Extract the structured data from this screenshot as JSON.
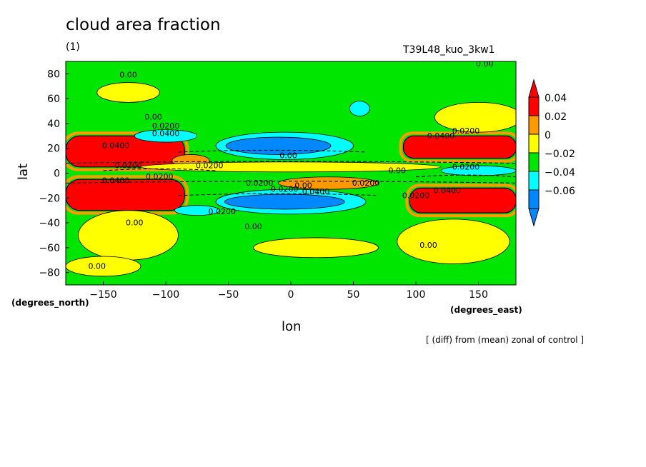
{
  "chart_data": {
    "type": "heatmap",
    "title": "cloud area fraction",
    "panel_label": "(1)",
    "run_label": "T39L48_kuo_3kw1",
    "xlabel": "lon",
    "ylabel": "lat",
    "x_unit": "(degrees_east)",
    "y_unit": "(degrees_north)",
    "footnote": "[ (diff) from (mean) zonal of control ]",
    "xlim": [
      -180,
      180
    ],
    "ylim": [
      -90,
      90
    ],
    "x_ticks": [
      -150,
      -100,
      -50,
      0,
      50,
      100,
      150
    ],
    "y_ticks": [
      -80,
      -60,
      -40,
      -20,
      0,
      20,
      40,
      60,
      80
    ],
    "x_tick_labels": [
      "−150",
      "−100",
      "−50",
      "0",
      "50",
      "100",
      "150"
    ],
    "y_tick_labels": [
      "−80",
      "−60",
      "−40",
      "−20",
      "0",
      "20",
      "40",
      "60",
      "80"
    ],
    "colorbar": {
      "levels": [
        {
          "label": "0.04",
          "color": "#ff0000"
        },
        {
          "label": "0.02",
          "color": "#ff9900"
        },
        {
          "label": "0",
          "color": "#ffff00"
        },
        {
          "label": "−0.02",
          "color": "#00e600"
        },
        {
          "label": "−0.04",
          "color": "#00ffff"
        },
        {
          "label": "−0.06",
          "color": "#0088ff"
        }
      ],
      "top_color": "#ff0000",
      "bottom_color": "#0088ff",
      "extra_color": "#3333ff"
    },
    "background_color": "#00e600",
    "regions": [
      {
        "kind": "band",
        "lon": [
          -180,
          -85
        ],
        "lat": [
          5,
          30
        ],
        "value": 0.04
      },
      {
        "kind": "band",
        "lon": [
          -180,
          -85
        ],
        "lat": [
          -30,
          -5
        ],
        "value": 0.04
      },
      {
        "kind": "band",
        "lon": [
          90,
          180
        ],
        "lat": [
          12,
          30
        ],
        "value": 0.04
      },
      {
        "kind": "band",
        "lon": [
          95,
          180
        ],
        "lat": [
          -32,
          -12
        ],
        "value": 0.04
      },
      {
        "kind": "blob",
        "lon": -5,
        "lat": 22,
        "rlon": 55,
        "rlat": 11,
        "value": -0.04
      },
      {
        "kind": "blob",
        "lon": -10,
        "lat": 22,
        "rlon": 42,
        "rlat": 7,
        "value": -0.06
      },
      {
        "kind": "blob",
        "lon": 0,
        "lat": -23,
        "rlon": 60,
        "rlat": 10,
        "value": -0.04
      },
      {
        "kind": "blob",
        "lon": -5,
        "lat": -23,
        "rlon": 48,
        "rlat": 6,
        "value": -0.06
      },
      {
        "kind": "blob",
        "lon": -100,
        "lat": 30,
        "rlon": 25,
        "rlat": 5,
        "value": -0.04
      },
      {
        "kind": "blob",
        "lon": -75,
        "lat": -30,
        "rlon": 18,
        "rlat": 4,
        "value": -0.04
      },
      {
        "kind": "blob",
        "lon": 55,
        "lat": 52,
        "rlon": 8,
        "rlat": 6,
        "value": -0.04
      },
      {
        "kind": "blob",
        "lon": 150,
        "lat": 2,
        "rlon": 30,
        "rlat": 4,
        "value": -0.04
      },
      {
        "kind": "blob",
        "lon": -80,
        "lat": 10,
        "rlon": 15,
        "rlat": 5,
        "value": 0.02
      },
      {
        "kind": "blob",
        "lon": 30,
        "lat": -8,
        "rlon": 40,
        "rlat": 5,
        "value": 0.02
      },
      {
        "kind": "blob",
        "lon": -130,
        "lat": 65,
        "rlon": 25,
        "rlat": 8,
        "value": 0
      },
      {
        "kind": "blob",
        "lon": 150,
        "lat": 45,
        "rlon": 35,
        "rlat": 12,
        "value": 0
      },
      {
        "kind": "blob",
        "lon": -130,
        "lat": -50,
        "rlon": 40,
        "rlat": 20,
        "value": 0
      },
      {
        "kind": "blob",
        "lon": 130,
        "lat": -55,
        "rlon": 45,
        "rlat": 18,
        "value": 0
      },
      {
        "kind": "blob",
        "lon": 20,
        "lat": -60,
        "rlon": 50,
        "rlat": 8,
        "value": 0
      },
      {
        "kind": "blob",
        "lon": -150,
        "lat": -75,
        "rlon": 30,
        "rlat": 8,
        "value": 0
      },
      {
        "kind": "blob",
        "lon": 0,
        "lat": 5,
        "rlon": 120,
        "rlat": 4,
        "value": 0
      }
    ],
    "contour_labels": [
      {
        "text": "0.00",
        "lon": -130,
        "lat": 77
      },
      {
        "text": "0.00",
        "lon": -110,
        "lat": 43
      },
      {
        "text": "0.0200",
        "lon": -100,
        "lat": 36
      },
      {
        "text": "0.0400",
        "lon": -100,
        "lat": 30
      },
      {
        "text": "0.0400",
        "lon": -140,
        "lat": 20
      },
      {
        "text": "0.0200",
        "lon": -65,
        "lat": 4
      },
      {
        "text": "0.0200",
        "lon": -130,
        "lat": 4
      },
      {
        "text": "0.0400",
        "lon": -140,
        "lat": -8
      },
      {
        "text": "0.0200",
        "lon": -105,
        "lat": -5
      },
      {
        "text": "0.0200",
        "lon": -25,
        "lat": -10
      },
      {
        "text": "0.0200",
        "lon": -5,
        "lat": -15
      },
      {
        "text": "0.0400",
        "lon": 20,
        "lat": -17
      },
      {
        "text": "0.00",
        "lon": 10,
        "lat": -12
      },
      {
        "text": "0.0200",
        "lon": 60,
        "lat": -10
      },
      {
        "text": "0.00",
        "lon": -2,
        "lat": 12
      },
      {
        "text": "0.00",
        "lon": 85,
        "lat": 0
      },
      {
        "text": "0.0200",
        "lon": 140,
        "lat": 3
      },
      {
        "text": "0.0400",
        "lon": 120,
        "lat": 28
      },
      {
        "text": "0.0200",
        "lon": 140,
        "lat": 32
      },
      {
        "text": "0.0200",
        "lon": 100,
        "lat": -20
      },
      {
        "text": "0.0400",
        "lon": 125,
        "lat": -16
      },
      {
        "text": "0.0200",
        "lon": -55,
        "lat": -33
      },
      {
        "text": "0.00",
        "lon": -125,
        "lat": -42
      },
      {
        "text": "0.00",
        "lon": -30,
        "lat": -45
      },
      {
        "text": "0.00",
        "lon": 110,
        "lat": -60
      },
      {
        "text": "0.00",
        "lon": -155,
        "lat": -77
      },
      {
        "text": "0.00",
        "lon": 155,
        "lat": 86
      }
    ]
  }
}
